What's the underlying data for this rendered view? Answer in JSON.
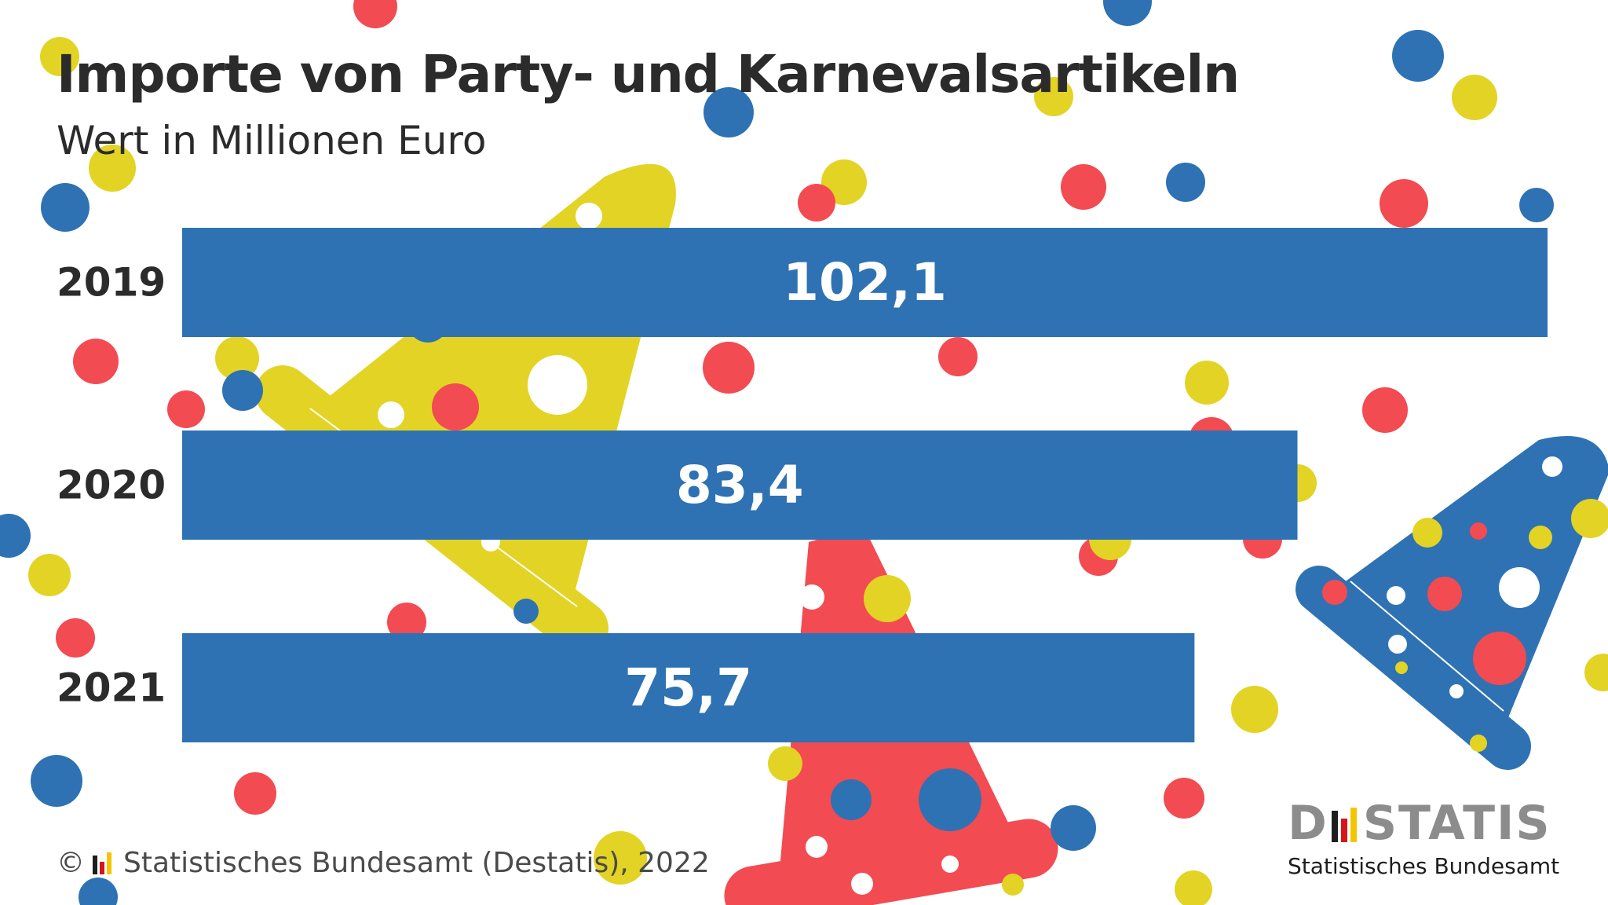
{
  "header": {
    "title": "Importe von Party- und Karnevalsartikeln",
    "subtitle": "Wert in Millionen Euro"
  },
  "chart_data": {
    "type": "bar",
    "orientation": "horizontal",
    "categories": [
      "2019",
      "2020",
      "2021"
    ],
    "values": [
      102.1,
      83.4,
      75.7
    ],
    "value_labels": [
      "102,1",
      "83,4",
      "75,7"
    ],
    "title": "Importe von Party- und Karnevalsartikeln",
    "subtitle": "Wert in Millionen Euro",
    "xlim": [
      0,
      102.1
    ],
    "grid": false,
    "bar_color": "#2e72b3",
    "label_color": "#ffffff"
  },
  "footer": {
    "copyright_symbol": "©",
    "source": "Statistisches Bundesamt (Destatis), 2022"
  },
  "logo": {
    "brand_start": "D",
    "brand_end": "STATIS",
    "org": "Statistisches Bundesamt"
  },
  "colors": {
    "blue": "#2e72b3",
    "red": "#f24b52",
    "yellow": "#e3d324",
    "flag_black": "#1e1e1e",
    "flag_red": "#d7141a",
    "flag_gold": "#f5c400"
  }
}
